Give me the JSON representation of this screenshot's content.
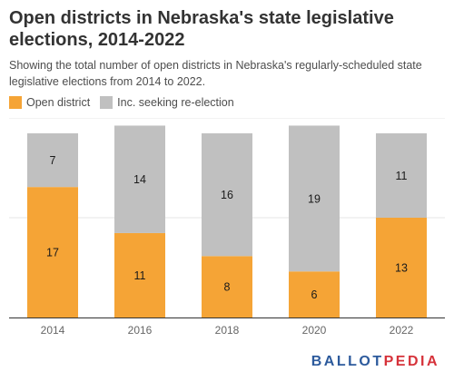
{
  "title": "Open districts in Nebraska's state legislative elections, 2014-2022",
  "subtitle": "Showing the total number of open districts in Nebraska's regularly-scheduled state legislative elections from 2014 to 2022.",
  "legend": [
    {
      "label": "Open district",
      "color": "#f5a436"
    },
    {
      "label": "Inc. seeking re-election",
      "color": "#c0c0c0"
    }
  ],
  "logo": {
    "part1": "BALLOT",
    "part2": "PEDIA",
    "color_main": "#2c5a9c",
    "color_accent": "#d6323a"
  },
  "chart_data": {
    "type": "bar",
    "stacked": true,
    "categories": [
      "2014",
      "2016",
      "2018",
      "2020",
      "2022"
    ],
    "series": [
      {
        "name": "Open district",
        "color": "#f5a436",
        "values": [
          17,
          11,
          8,
          6,
          13
        ]
      },
      {
        "name": "Inc. seeking re-election",
        "color": "#c0c0c0",
        "values": [
          7,
          14,
          16,
          19,
          11
        ]
      }
    ],
    "ylim": [
      0,
      26
    ],
    "grid": true,
    "legend_position": "top-left",
    "data_labels": true
  }
}
